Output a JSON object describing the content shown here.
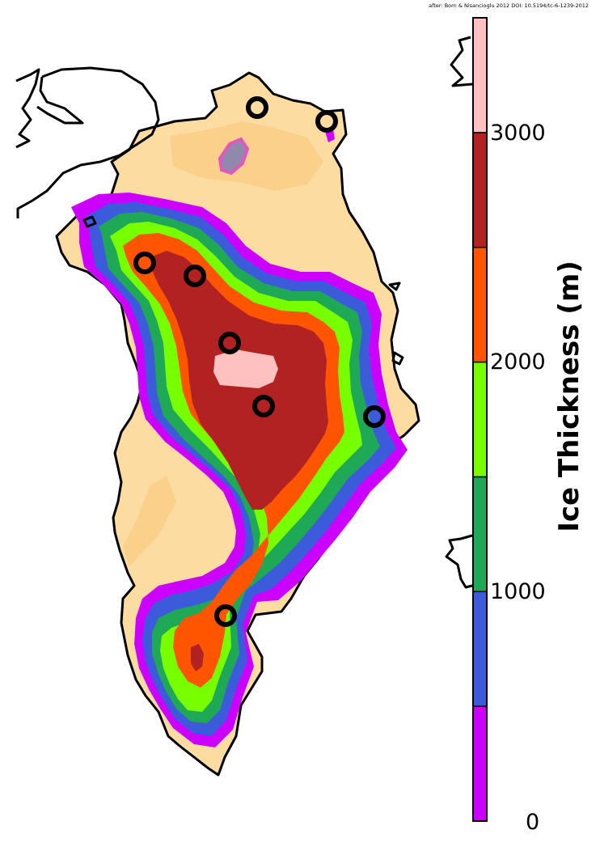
{
  "credit": "after: Born & Nisancioglu 2012  DOI: 10.5194/tc-6-1239-2012",
  "colorbar": {
    "title": "Ice Thickness (m)",
    "tick_labels": {
      "t0": "0",
      "t1000": "1000",
      "t2000": "2000",
      "t3000": "3000"
    },
    "range": [
      0,
      3500
    ],
    "bins": [
      {
        "from": 0,
        "to": 500,
        "color": "#cc00ff"
      },
      {
        "from": 500,
        "to": 1000,
        "color": "#3b5bdb"
      },
      {
        "from": 1000,
        "to": 1500,
        "color": "#1fa855"
      },
      {
        "from": 1500,
        "to": 2000,
        "color": "#77ff00"
      },
      {
        "from": 2000,
        "to": 2500,
        "color": "#ff5500"
      },
      {
        "from": 2500,
        "to": 3000,
        "color": "#b22222"
      },
      {
        "from": 3000,
        "to": 3500,
        "color": "#ffc0c0"
      }
    ]
  },
  "colors": {
    "ice_free_light": "#fce0a8",
    "ice_free_dark": "#f8c070",
    "coastline": "#000000"
  }
}
